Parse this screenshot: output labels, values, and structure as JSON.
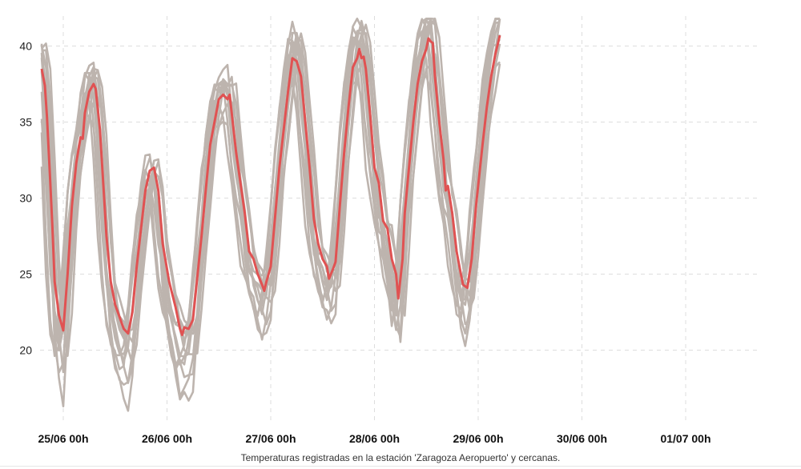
{
  "chart_data": {
    "type": "line",
    "caption": "Temperaturas registradas en la estación 'Zaragoza Aeropuerto' y cercanas.",
    "x_ticks": [
      "25/06 00h",
      "26/06 00h",
      "27/06 00h",
      "28/06 00h",
      "29/06 00h",
      "30/06 00h",
      "01/07 00h"
    ],
    "y_ticks": [
      20,
      25,
      30,
      35,
      40
    ],
    "ylim": [
      14.5,
      42
    ],
    "grid": true,
    "highlight": {
      "color": "#e05252",
      "points": [
        [
          0,
          38.5
        ],
        [
          0.75,
          37.4
        ],
        [
          1.25,
          35.3
        ],
        [
          2,
          31.0
        ],
        [
          2.5,
          28.0
        ],
        [
          3,
          24.5
        ],
        [
          3.5,
          23.4
        ],
        [
          4,
          22.3
        ],
        [
          5,
          21.3
        ],
        [
          6,
          25.0
        ],
        [
          7,
          29.5
        ],
        [
          8,
          32.3
        ],
        [
          9,
          34.0
        ],
        [
          9.5,
          33.9
        ],
        [
          10,
          35.6
        ],
        [
          11,
          37.0
        ],
        [
          12,
          37.5
        ],
        [
          12.5,
          37.2
        ],
        [
          13.5,
          34.5
        ],
        [
          15,
          27.5
        ],
        [
          16,
          24.5
        ],
        [
          17,
          23.0
        ],
        [
          19,
          21.4
        ],
        [
          20,
          21.1
        ],
        [
          21,
          22.5
        ],
        [
          22,
          25.5
        ],
        [
          23,
          28.0
        ],
        [
          24,
          30.5
        ],
        [
          25,
          31.8
        ],
        [
          26,
          32.0
        ],
        [
          27,
          30.5
        ],
        [
          28,
          27.0
        ],
        [
          29.5,
          24.5
        ],
        [
          31,
          22.8
        ],
        [
          32,
          21.4
        ],
        [
          32.5,
          21.0
        ],
        [
          33,
          21.5
        ],
        [
          34,
          21.4
        ],
        [
          35,
          22.0
        ],
        [
          37,
          27.5
        ],
        [
          38,
          30.6
        ],
        [
          39,
          33.5
        ],
        [
          40,
          35.0
        ],
        [
          41,
          36.5
        ],
        [
          42,
          36.8
        ],
        [
          43,
          36.5
        ],
        [
          43.5,
          36.8
        ],
        [
          45,
          33.0
        ],
        [
          47,
          29.0
        ],
        [
          48,
          26.5
        ],
        [
          49,
          26.0
        ],
        [
          50,
          25.0
        ],
        [
          51,
          24.3
        ],
        [
          51.5,
          23.9
        ],
        [
          52,
          24.5
        ],
        [
          53,
          25.5
        ],
        [
          55,
          32.0
        ],
        [
          57,
          37.0
        ],
        [
          58,
          39.2
        ],
        [
          59,
          39.0
        ],
        [
          60,
          38.0
        ],
        [
          62,
          32.0
        ],
        [
          63,
          28.6
        ],
        [
          64,
          27.0
        ],
        [
          65,
          26.0
        ],
        [
          66,
          25.5
        ],
        [
          66.5,
          24.7
        ],
        [
          67.5,
          25.4
        ],
        [
          68,
          25.8
        ],
        [
          69,
          29.5
        ],
        [
          70,
          33.0
        ],
        [
          71,
          36.0
        ],
        [
          72,
          38.6
        ],
        [
          73,
          39.2
        ],
        [
          73.5,
          39.8
        ],
        [
          74,
          39.2
        ],
        [
          74.5,
          39.3
        ],
        [
          75,
          38.5
        ],
        [
          76,
          35.5
        ],
        [
          77,
          32.0
        ],
        [
          78,
          31.0
        ],
        [
          79,
          28.5
        ],
        [
          80,
          28.0
        ],
        [
          81,
          26.0
        ],
        [
          82,
          25.0
        ],
        [
          82.5,
          23.4
        ],
        [
          83.5,
          26.0
        ],
        [
          84,
          29.0
        ],
        [
          85,
          32.0
        ],
        [
          86,
          35.0
        ],
        [
          87,
          37.5
        ],
        [
          88,
          39.0
        ],
        [
          89,
          39.8
        ],
        [
          89.5,
          40.5
        ],
        [
          90,
          40.3
        ],
        [
          90.5,
          40.2
        ],
        [
          91,
          38.0
        ],
        [
          92,
          35.0
        ],
        [
          93,
          32.5
        ],
        [
          93.5,
          30.5
        ],
        [
          94,
          30.8
        ],
        [
          95,
          29.0
        ],
        [
          96,
          26.5
        ],
        [
          97,
          25.0
        ],
        [
          97.5,
          24.3
        ],
        [
          98.5,
          24.1
        ],
        [
          99.5,
          26.0
        ],
        [
          100.5,
          29.5
        ],
        [
          102,
          33.5
        ],
        [
          103,
          36.0
        ],
        [
          104,
          38.0
        ],
        [
          105,
          39.5
        ],
        [
          106,
          40.7
        ]
      ]
    },
    "others_color": "#bdb4ae"
  }
}
